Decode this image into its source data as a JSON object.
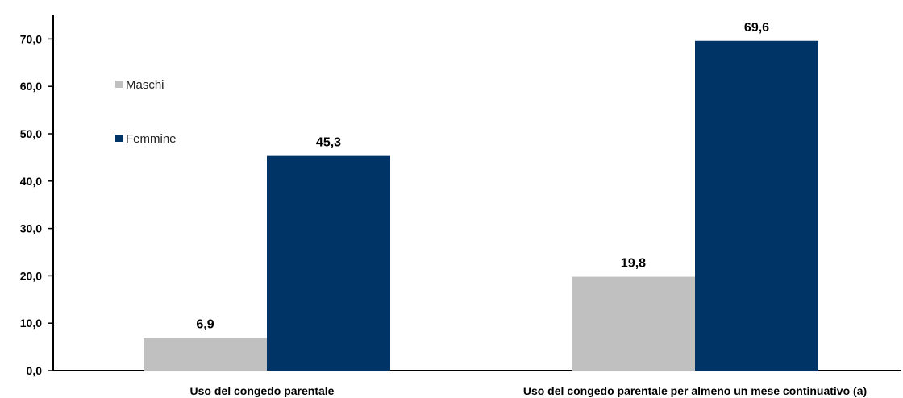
{
  "chart_data": {
    "type": "bar",
    "categories": [
      "Uso del congedo parentale",
      "Uso del congedo parentale per almeno un mese continuativo (a)"
    ],
    "series": [
      {
        "name": "Maschi",
        "values": [
          6.9,
          19.8
        ],
        "labels": [
          "6,9",
          "19,8"
        ],
        "color": "#c0c0c0"
      },
      {
        "name": "Femmine",
        "values": [
          45.3,
          69.6
        ],
        "labels": [
          "45,3",
          "69,6"
        ],
        "color": "#003366"
      }
    ],
    "yticks": [
      "0,0",
      "10,0",
      "20,0",
      "30,0",
      "40,0",
      "50,0",
      "60,0",
      "70,0"
    ],
    "ylim": [
      0,
      75
    ],
    "grid": false,
    "legend_position": "top-left"
  }
}
